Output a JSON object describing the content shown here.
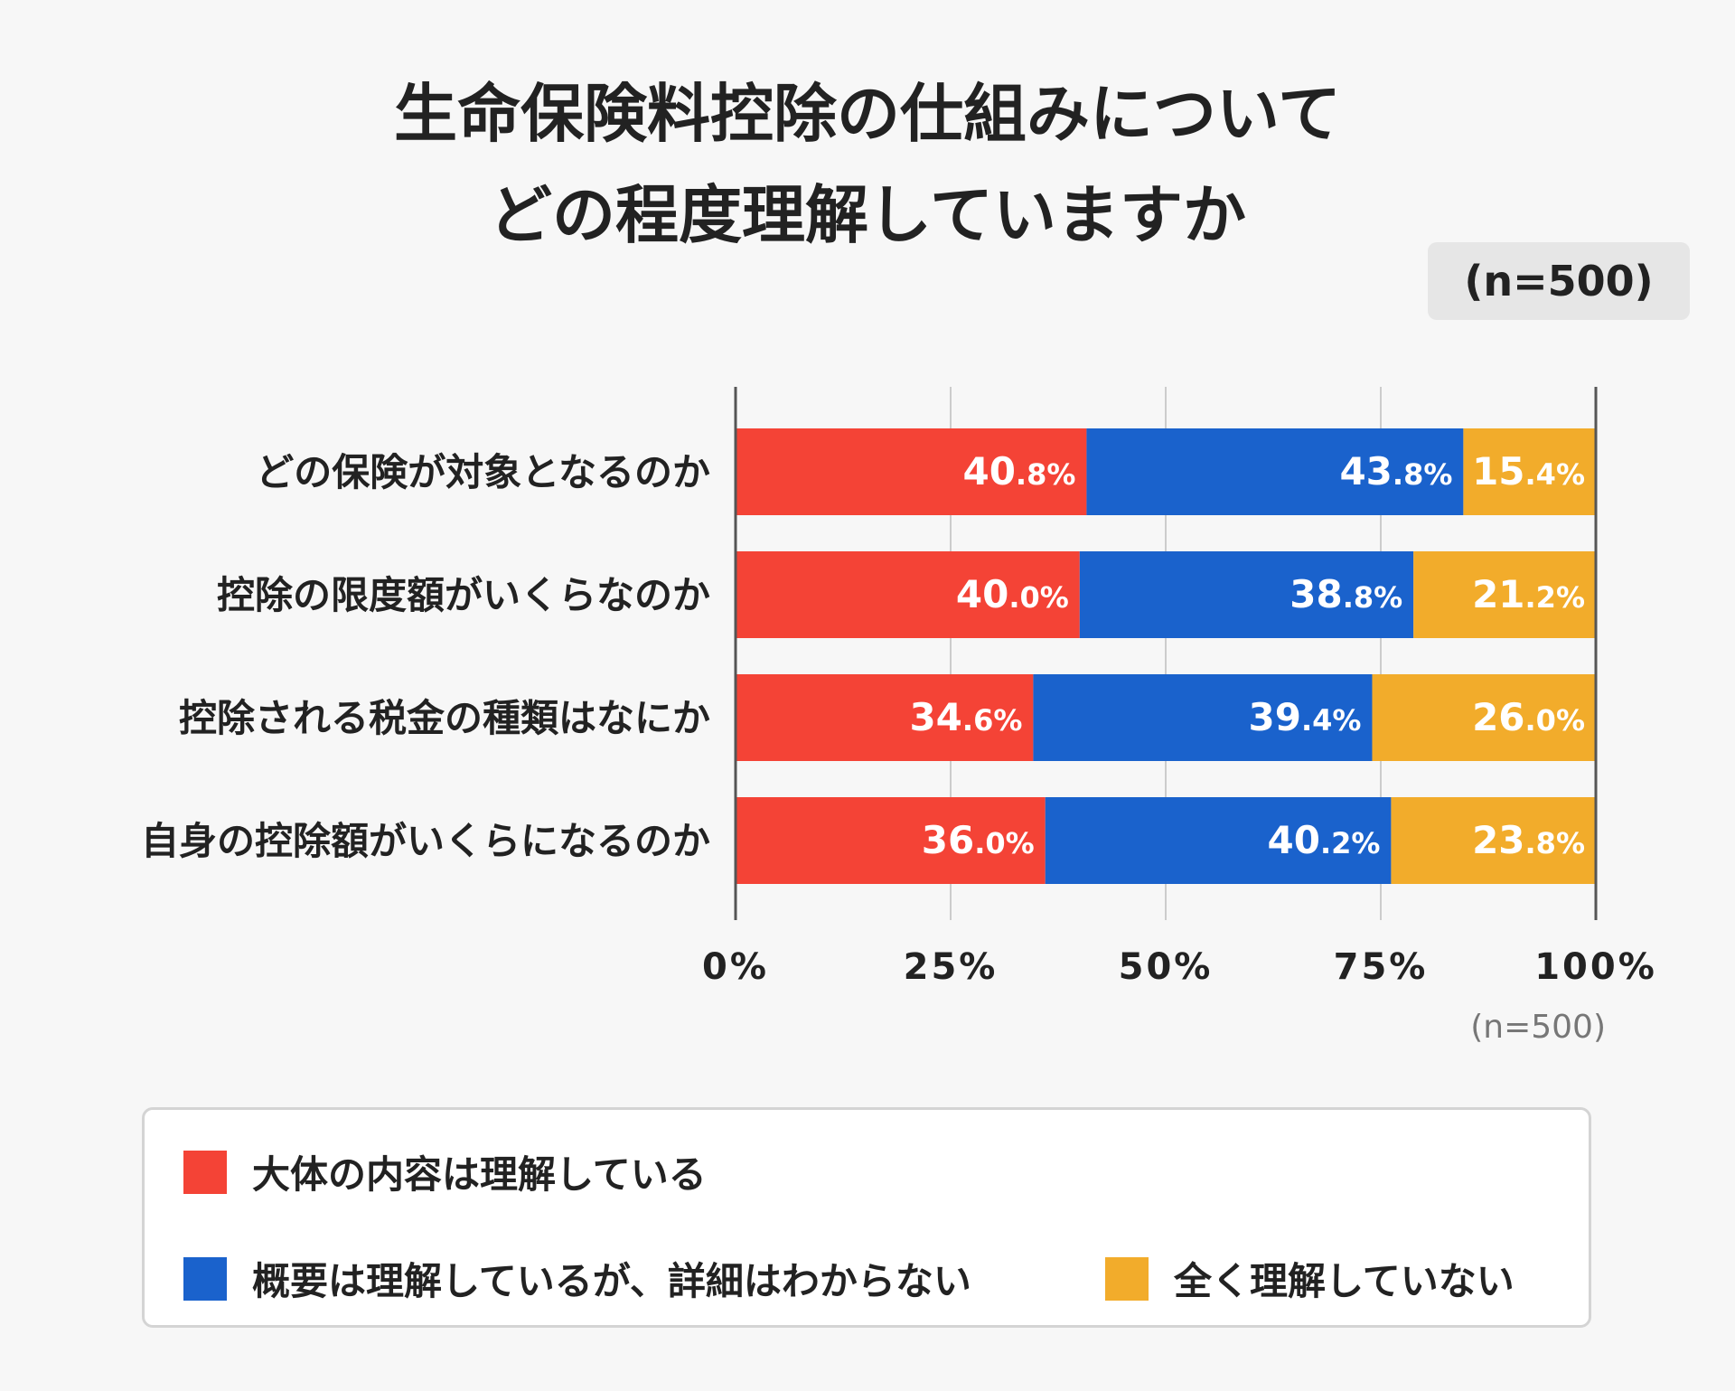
{
  "chart_data": {
    "type": "bar",
    "orientation": "horizontal",
    "stacked": true,
    "title": [
      "生命保険料控除の仕組みについて",
      "どの程度理解していますか"
    ],
    "sample_badge": "(n=500)",
    "sample_note": "(n=500)",
    "categories": [
      "どの保険が対象となるのか",
      "控除の限度額がいくらなのか",
      "控除される税金の種類はなにか",
      "自身の控除額がいくらになるのか"
    ],
    "series": [
      {
        "name": "大体の内容は理解している",
        "color": "#f44336",
        "values": [
          40.8,
          40.0,
          34.6,
          36.0
        ],
        "labels": [
          [
            "40",
            ".8%"
          ],
          [
            "40",
            ".0%"
          ],
          [
            "34",
            ".6%"
          ],
          [
            "36",
            ".0%"
          ]
        ]
      },
      {
        "name": "概要は理解しているが、詳細はわからない",
        "color": "#1a62cc",
        "values": [
          43.8,
          38.8,
          39.4,
          40.2
        ],
        "labels": [
          [
            "43",
            ".8%"
          ],
          [
            "38",
            ".8%"
          ],
          [
            "39",
            ".4%"
          ],
          [
            "40",
            ".2%"
          ]
        ]
      },
      {
        "name": "全く理解していない",
        "color": "#f2ac2b",
        "values": [
          15.4,
          21.2,
          26.0,
          23.8
        ],
        "labels": [
          [
            "15",
            ".4%"
          ],
          [
            "21",
            ".2%"
          ],
          [
            "26",
            ".0%"
          ],
          [
            "23",
            ".8%"
          ]
        ]
      }
    ],
    "xlim": [
      0,
      100
    ],
    "xticks": [
      "0%",
      "25%",
      "50%",
      "75%",
      "100%"
    ],
    "grid": true,
    "legend_position": "bottom"
  }
}
